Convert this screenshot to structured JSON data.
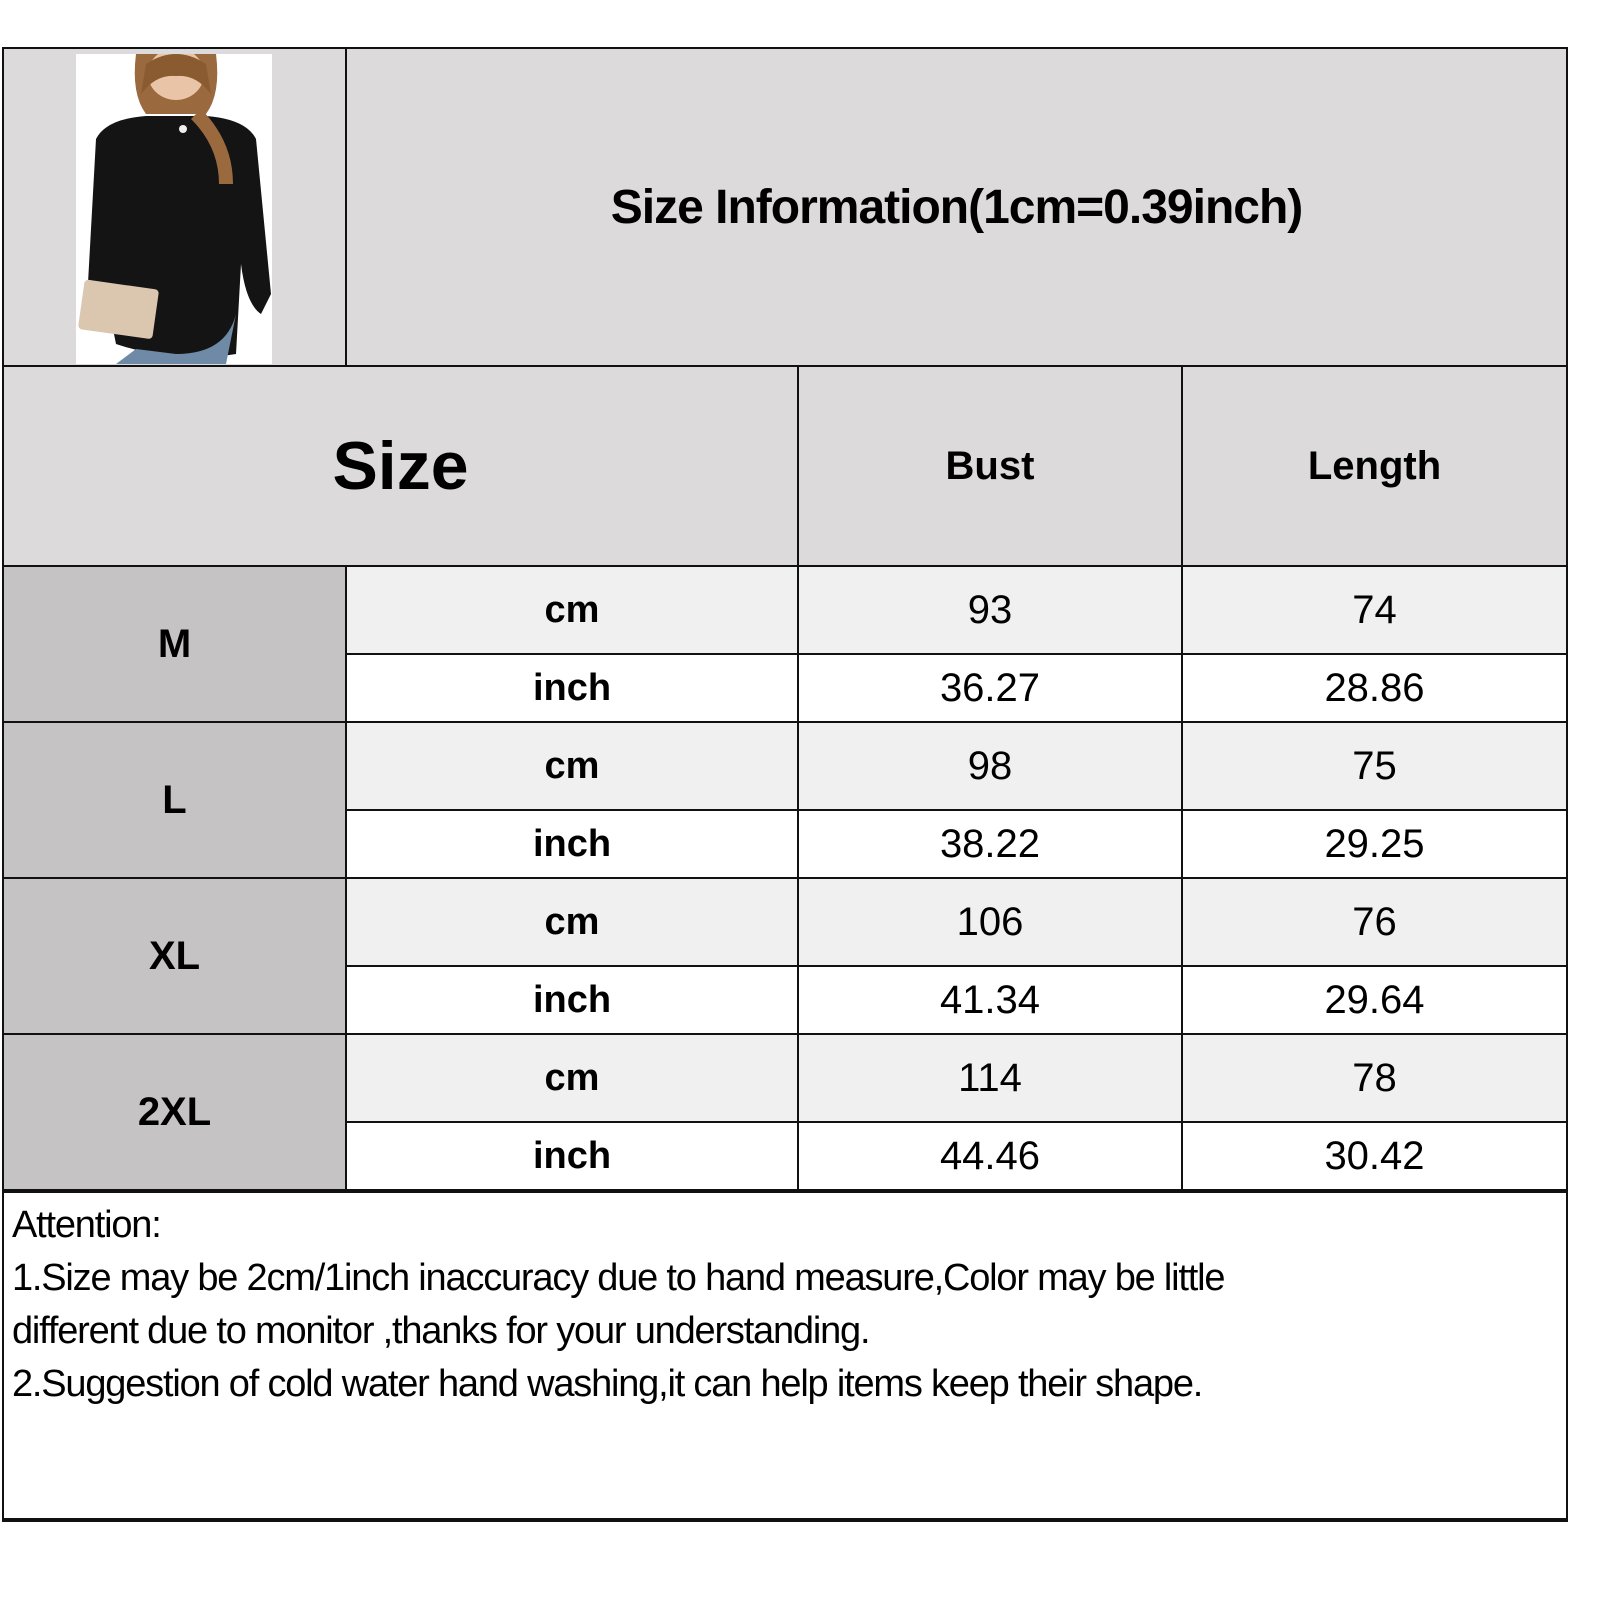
{
  "title": "Size Information(1cm=0.39inch)",
  "header": {
    "size": "Size",
    "bust": "Bust",
    "length": "Length"
  },
  "colors": {
    "header_bg": "#dcdadb",
    "size_label_bg": "#c6c3c4",
    "cm_row_bg": "#f0f0f0",
    "inch_row_bg": "#ffffff"
  },
  "rows": [
    {
      "size": "M",
      "cm_label": "cm",
      "inch_label": "inch",
      "bust_cm": "93",
      "length_cm": "74",
      "bust_inch": "36.27",
      "length_inch": "28.86"
    },
    {
      "size": "L",
      "cm_label": "cm",
      "inch_label": "inch",
      "bust_cm": "98",
      "length_cm": "75",
      "bust_inch": "38.22",
      "length_inch": "29.25"
    },
    {
      "size": "XL",
      "cm_label": "cm",
      "inch_label": "inch",
      "bust_cm": "106",
      "length_cm": "76",
      "bust_inch": "41.34",
      "length_inch": "29.64"
    },
    {
      "size": "2XL",
      "cm_label": "cm",
      "inch_label": "inch",
      "bust_cm": "114",
      "length_cm": "78",
      "bust_inch": "44.46",
      "length_inch": "30.42"
    }
  ],
  "attention": {
    "heading": "Attention:",
    "line1": "1.Size may be 2cm/1inch inaccuracy due to hand measure,Color may be little",
    "line2": "different due to monitor ,thanks for your understanding.",
    "line3": "2.Suggestion of cold water hand washing,it can help items keep their shape."
  }
}
